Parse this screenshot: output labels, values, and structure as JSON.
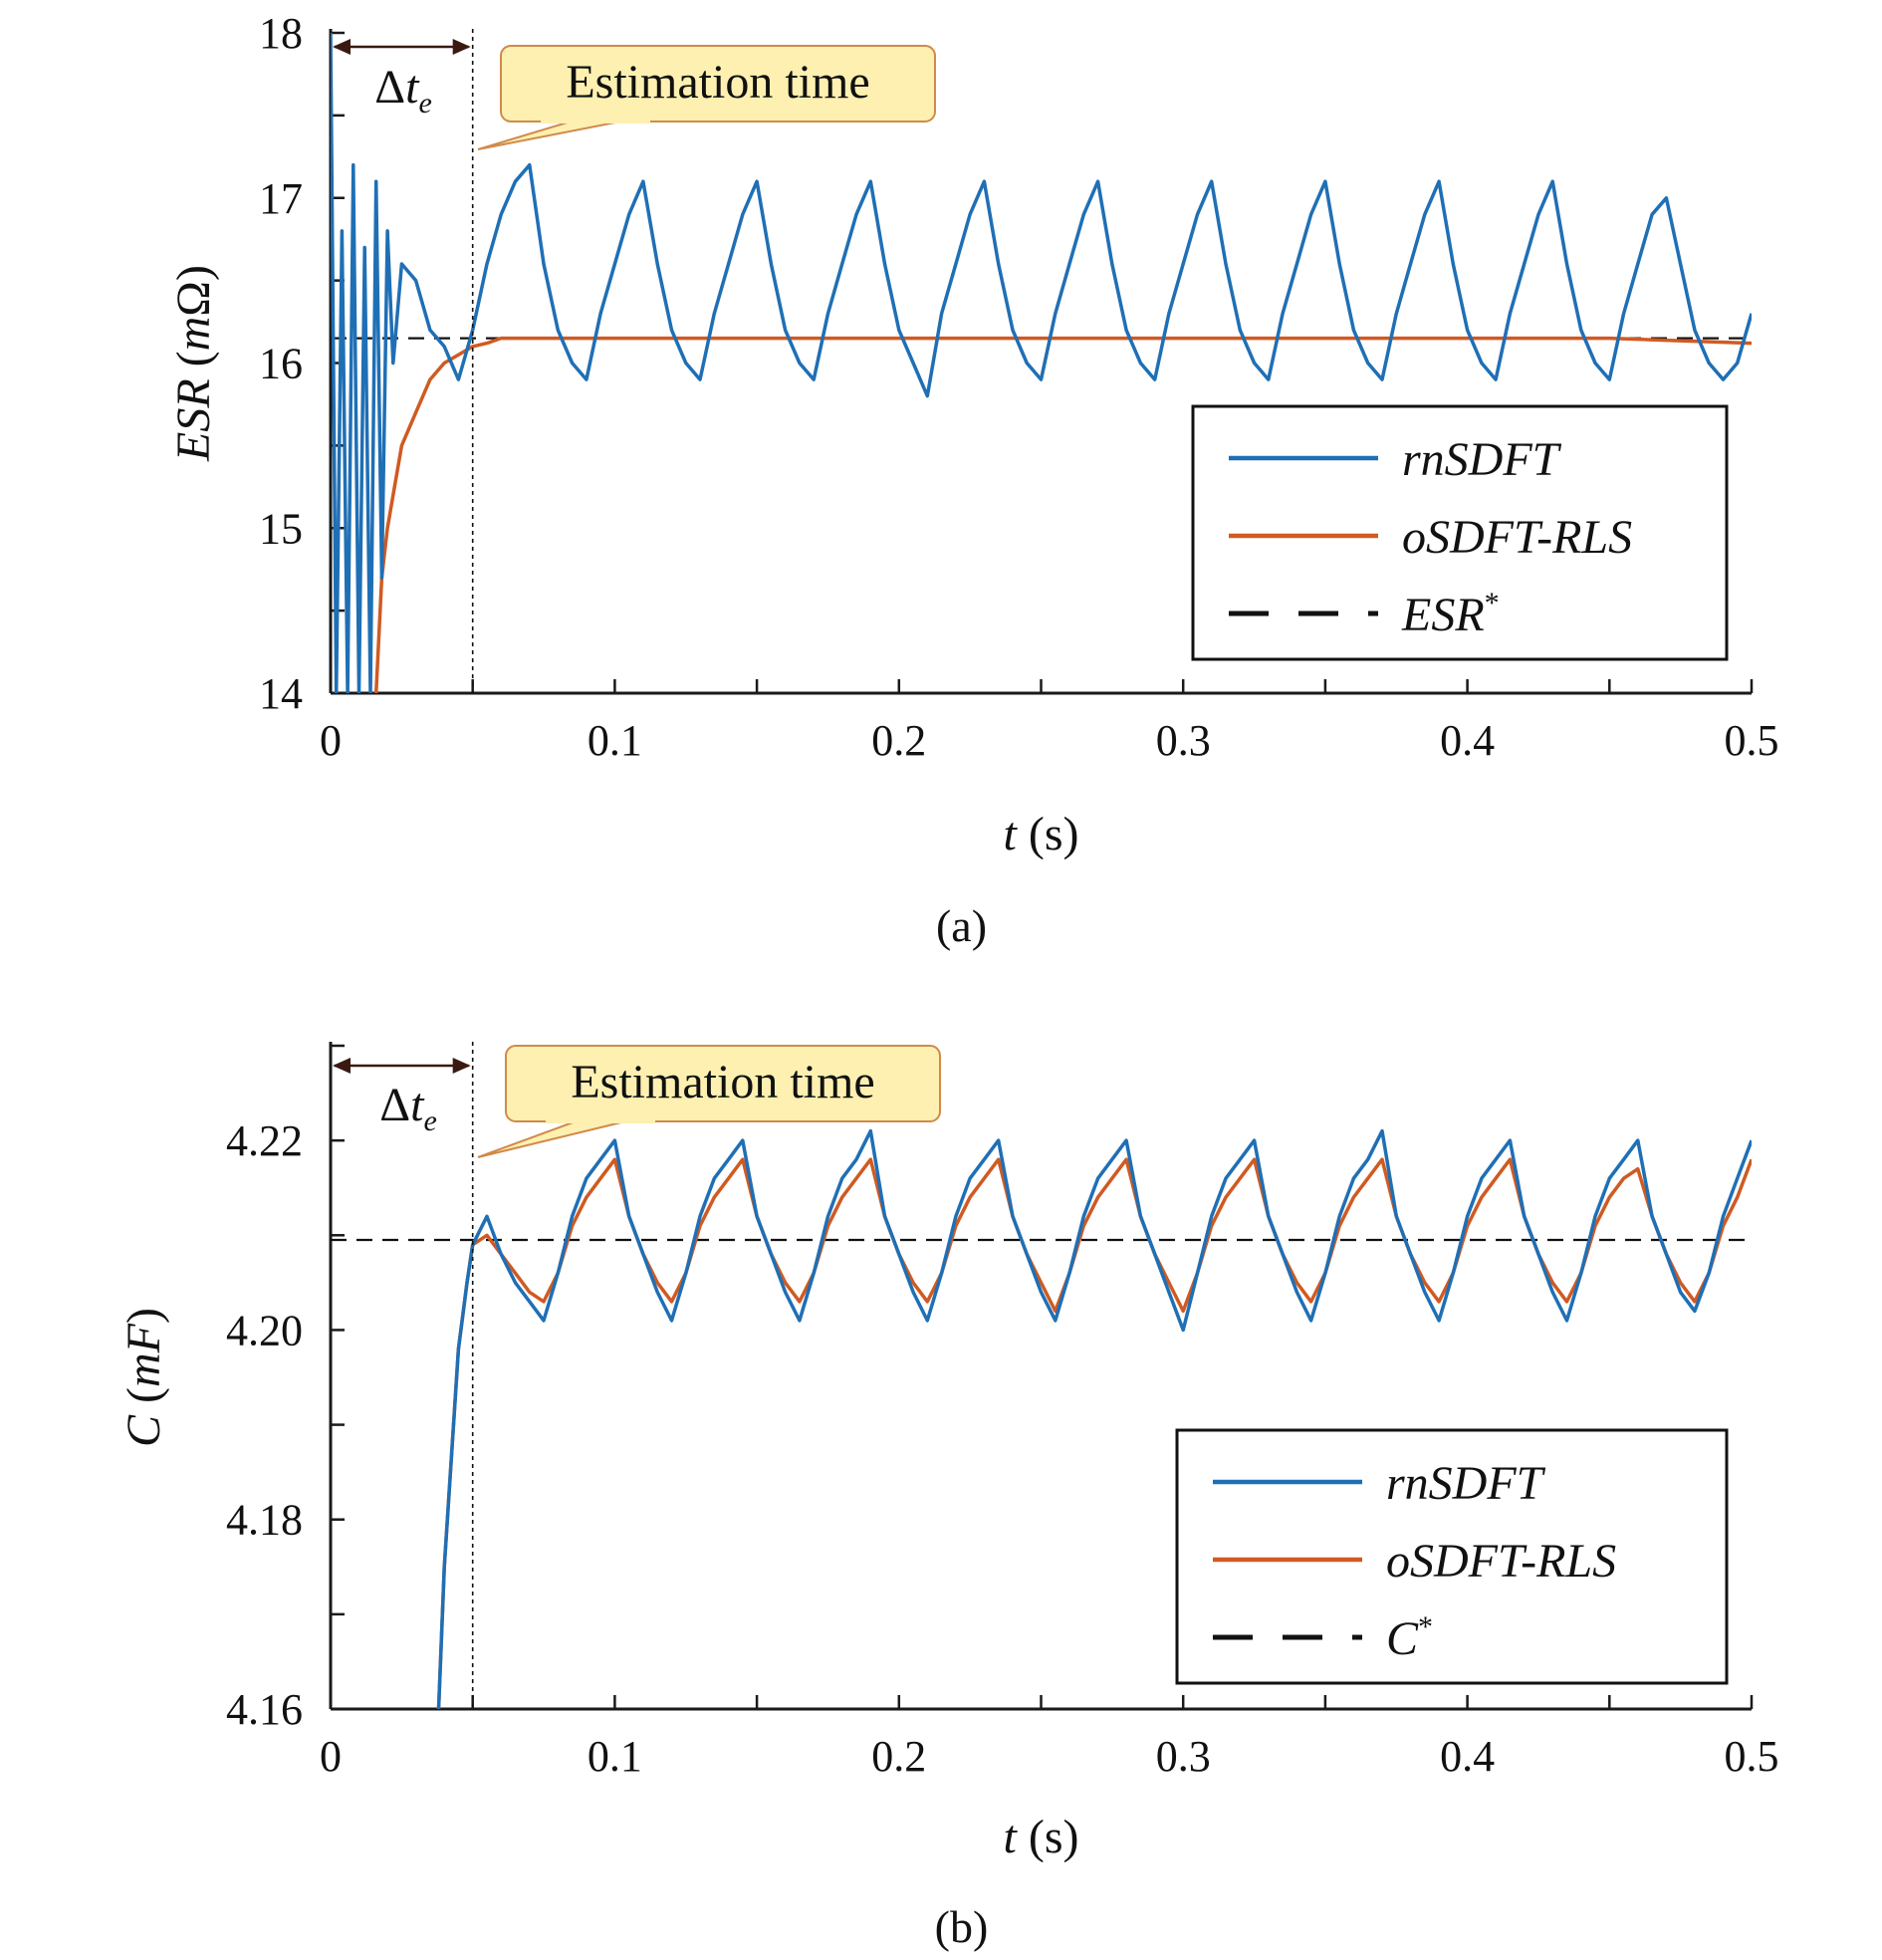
{
  "colors": {
    "rnSDFT": "#1f6fb5",
    "oSDFT_RLS": "#d05a22",
    "reference": "#111111",
    "callout_fill": "#fdf0b0",
    "callout_border": "#d08a4a"
  },
  "chart_data": [
    {
      "type": "line",
      "caption": "(a)",
      "xlabel_var": "t",
      "xlabel_unit": " (s)",
      "ylabel_var": "ESR",
      "ylabel_unit_open": " (",
      "ylabel_unit_var": "m",
      "ylabel_unit_close": "Ω)",
      "xlim": [
        0,
        0.5
      ],
      "ylim": [
        14,
        18
      ],
      "xticks": [
        0,
        0.1,
        0.2,
        0.3,
        0.4,
        0.5
      ],
      "xtick_labels": [
        "0",
        "0.1",
        "0.2",
        "0.3",
        "0.4",
        "0.5"
      ],
      "yticks": [
        14,
        15,
        16,
        17,
        18
      ],
      "ytick_labels": [
        "14",
        "15",
        "16",
        "17",
        "18"
      ],
      "estimation_time_line": 0.05,
      "annotation": "Estimation time",
      "delta_label": "Δt",
      "delta_sub": "e",
      "legend_placement": "lower-right",
      "series": [
        {
          "name": "rnSDFT",
          "x": [
            0.0,
            0.002,
            0.004,
            0.006,
            0.008,
            0.01,
            0.012,
            0.014,
            0.016,
            0.018,
            0.02,
            0.022,
            0.025,
            0.03,
            0.035,
            0.04,
            0.045,
            0.05,
            0.055,
            0.06,
            0.065,
            0.07,
            0.075,
            0.08,
            0.085,
            0.09,
            0.095,
            0.1,
            0.105,
            0.11,
            0.115,
            0.12,
            0.125,
            0.13,
            0.135,
            0.14,
            0.145,
            0.15,
            0.155,
            0.16,
            0.165,
            0.17,
            0.175,
            0.18,
            0.185,
            0.19,
            0.195,
            0.2,
            0.205,
            0.21,
            0.215,
            0.22,
            0.225,
            0.23,
            0.235,
            0.24,
            0.245,
            0.25,
            0.255,
            0.26,
            0.265,
            0.27,
            0.275,
            0.28,
            0.285,
            0.29,
            0.295,
            0.3,
            0.305,
            0.31,
            0.315,
            0.32,
            0.325,
            0.33,
            0.335,
            0.34,
            0.345,
            0.35,
            0.355,
            0.36,
            0.365,
            0.37,
            0.375,
            0.38,
            0.385,
            0.39,
            0.395,
            0.4,
            0.405,
            0.41,
            0.415,
            0.42,
            0.425,
            0.43,
            0.435,
            0.44,
            0.445,
            0.45,
            0.455,
            0.46,
            0.465,
            0.47,
            0.475,
            0.48,
            0.485,
            0.49,
            0.495,
            0.5
          ],
          "y": [
            18.0,
            14.0,
            16.8,
            14.0,
            17.2,
            14.0,
            16.7,
            14.0,
            17.1,
            14.7,
            16.8,
            16.0,
            16.6,
            16.5,
            16.2,
            16.1,
            15.9,
            16.2,
            16.6,
            16.9,
            17.1,
            17.2,
            16.6,
            16.2,
            16.0,
            15.9,
            16.3,
            16.6,
            16.9,
            17.1,
            16.6,
            16.2,
            16.0,
            15.9,
            16.3,
            16.6,
            16.9,
            17.1,
            16.6,
            16.2,
            16.0,
            15.9,
            16.3,
            16.6,
            16.9,
            17.1,
            16.6,
            16.2,
            16.0,
            15.8,
            16.3,
            16.6,
            16.9,
            17.1,
            16.6,
            16.2,
            16.0,
            15.9,
            16.3,
            16.6,
            16.9,
            17.1,
            16.6,
            16.2,
            16.0,
            15.9,
            16.3,
            16.6,
            16.9,
            17.1,
            16.6,
            16.2,
            16.0,
            15.9,
            16.3,
            16.6,
            16.9,
            17.1,
            16.6,
            16.2,
            16.0,
            15.9,
            16.3,
            16.6,
            16.9,
            17.1,
            16.6,
            16.2,
            16.0,
            15.9,
            16.3,
            16.6,
            16.9,
            17.1,
            16.6,
            16.2,
            16.0,
            15.9,
            16.3,
            16.6,
            16.9,
            17.0,
            16.6,
            16.2,
            16.0,
            15.9,
            16.0,
            16.3
          ]
        },
        {
          "name": "oSDFT-RLS",
          "x": [
            0.016,
            0.018,
            0.02,
            0.022,
            0.025,
            0.03,
            0.035,
            0.04,
            0.045,
            0.05,
            0.055,
            0.06,
            0.08,
            0.1,
            0.15,
            0.2,
            0.25,
            0.3,
            0.35,
            0.4,
            0.45,
            0.5
          ],
          "y": [
            14.0,
            14.7,
            15.0,
            15.2,
            15.5,
            15.7,
            15.9,
            16.0,
            16.05,
            16.1,
            16.12,
            16.15,
            16.15,
            16.15,
            16.15,
            16.15,
            16.15,
            16.15,
            16.15,
            16.15,
            16.15,
            16.12
          ]
        },
        {
          "name": "ESR*",
          "x": [
            0,
            0.5
          ],
          "y": [
            16.15,
            16.15
          ]
        }
      ],
      "legend": [
        {
          "text": "rnSDFT",
          "sup": ""
        },
        {
          "text": "oSDFT-RLS",
          "sup": ""
        },
        {
          "text": "ESR",
          "sup": "*"
        }
      ]
    },
    {
      "type": "line",
      "caption": "(b)",
      "xlabel_var": "t",
      "xlabel_unit": " (s)",
      "ylabel_var": "C",
      "ylabel_unit_open": " (",
      "ylabel_unit_var": "mF",
      "ylabel_unit_close": ")",
      "xlim": [
        0,
        0.5
      ],
      "ylim": [
        4.16,
        4.23
      ],
      "xticks": [
        0,
        0.1,
        0.2,
        0.3,
        0.4,
        0.5
      ],
      "xtick_labels": [
        "0",
        "0.1",
        "0.2",
        "0.3",
        "0.4",
        "0.5"
      ],
      "yticks": [
        4.16,
        4.18,
        4.2,
        4.22
      ],
      "ytick_labels": [
        "4.16",
        "4.18",
        "4.20",
        "4.22"
      ],
      "estimation_time_line": 0.05,
      "annotation": "Estimation time",
      "delta_label": "Δt",
      "delta_sub": "e",
      "legend_placement": "lower-right",
      "series": [
        {
          "name": "rnSDFT",
          "x": [
            0.038,
            0.04,
            0.045,
            0.048,
            0.05,
            0.055,
            0.06,
            0.065,
            0.07,
            0.075,
            0.08,
            0.085,
            0.09,
            0.095,
            0.1,
            0.105,
            0.11,
            0.115,
            0.12,
            0.125,
            0.13,
            0.135,
            0.14,
            0.145,
            0.15,
            0.155,
            0.16,
            0.165,
            0.17,
            0.175,
            0.18,
            0.185,
            0.19,
            0.195,
            0.2,
            0.205,
            0.21,
            0.215,
            0.22,
            0.225,
            0.23,
            0.235,
            0.24,
            0.245,
            0.25,
            0.255,
            0.26,
            0.265,
            0.27,
            0.275,
            0.28,
            0.285,
            0.29,
            0.295,
            0.3,
            0.305,
            0.31,
            0.315,
            0.32,
            0.325,
            0.33,
            0.335,
            0.34,
            0.345,
            0.35,
            0.355,
            0.36,
            0.365,
            0.37,
            0.375,
            0.38,
            0.385,
            0.39,
            0.395,
            0.4,
            0.405,
            0.41,
            0.415,
            0.42,
            0.425,
            0.43,
            0.435,
            0.44,
            0.445,
            0.45,
            0.455,
            0.46,
            0.465,
            0.47,
            0.475,
            0.48,
            0.485,
            0.49,
            0.495,
            0.5
          ],
          "y": [
            4.16,
            4.175,
            4.198,
            4.205,
            4.209,
            4.212,
            4.208,
            4.205,
            4.203,
            4.201,
            4.206,
            4.212,
            4.216,
            4.218,
            4.22,
            4.212,
            4.208,
            4.204,
            4.201,
            4.206,
            4.212,
            4.216,
            4.218,
            4.22,
            4.212,
            4.208,
            4.204,
            4.201,
            4.206,
            4.212,
            4.216,
            4.218,
            4.221,
            4.212,
            4.208,
            4.204,
            4.201,
            4.206,
            4.212,
            4.216,
            4.218,
            4.22,
            4.212,
            4.208,
            4.204,
            4.201,
            4.206,
            4.212,
            4.216,
            4.218,
            4.22,
            4.212,
            4.208,
            4.204,
            4.2,
            4.206,
            4.212,
            4.216,
            4.218,
            4.22,
            4.212,
            4.208,
            4.204,
            4.201,
            4.206,
            4.212,
            4.216,
            4.218,
            4.221,
            4.212,
            4.208,
            4.204,
            4.201,
            4.206,
            4.212,
            4.216,
            4.218,
            4.22,
            4.212,
            4.208,
            4.204,
            4.201,
            4.206,
            4.212,
            4.216,
            4.218,
            4.22,
            4.212,
            4.208,
            4.204,
            4.202,
            4.206,
            4.212,
            4.216,
            4.22
          ]
        },
        {
          "name": "oSDFT-RLS",
          "x": [
            0.038,
            0.04,
            0.045,
            0.048,
            0.05,
            0.055,
            0.06,
            0.065,
            0.07,
            0.075,
            0.08,
            0.085,
            0.09,
            0.095,
            0.1,
            0.105,
            0.11,
            0.115,
            0.12,
            0.125,
            0.13,
            0.135,
            0.14,
            0.145,
            0.15,
            0.155,
            0.16,
            0.165,
            0.17,
            0.175,
            0.18,
            0.185,
            0.19,
            0.195,
            0.2,
            0.205,
            0.21,
            0.215,
            0.22,
            0.225,
            0.23,
            0.235,
            0.24,
            0.245,
            0.25,
            0.255,
            0.26,
            0.265,
            0.27,
            0.275,
            0.28,
            0.285,
            0.29,
            0.295,
            0.3,
            0.305,
            0.31,
            0.315,
            0.32,
            0.325,
            0.33,
            0.335,
            0.34,
            0.345,
            0.35,
            0.355,
            0.36,
            0.365,
            0.37,
            0.375,
            0.38,
            0.385,
            0.39,
            0.395,
            0.4,
            0.405,
            0.41,
            0.415,
            0.42,
            0.425,
            0.43,
            0.435,
            0.44,
            0.445,
            0.45,
            0.455,
            0.46,
            0.465,
            0.47,
            0.475,
            0.48,
            0.485,
            0.49,
            0.495,
            0.5
          ],
          "y": [
            4.16,
            4.175,
            4.198,
            4.205,
            4.209,
            4.21,
            4.208,
            4.206,
            4.204,
            4.203,
            4.206,
            4.211,
            4.214,
            4.216,
            4.218,
            4.212,
            4.208,
            4.205,
            4.203,
            4.206,
            4.211,
            4.214,
            4.216,
            4.218,
            4.212,
            4.208,
            4.205,
            4.203,
            4.206,
            4.211,
            4.214,
            4.216,
            4.218,
            4.212,
            4.208,
            4.205,
            4.203,
            4.206,
            4.211,
            4.214,
            4.216,
            4.218,
            4.212,
            4.208,
            4.205,
            4.202,
            4.206,
            4.211,
            4.214,
            4.216,
            4.218,
            4.212,
            4.208,
            4.205,
            4.202,
            4.206,
            4.211,
            4.214,
            4.216,
            4.218,
            4.212,
            4.208,
            4.205,
            4.203,
            4.206,
            4.211,
            4.214,
            4.216,
            4.218,
            4.212,
            4.208,
            4.205,
            4.203,
            4.206,
            4.211,
            4.214,
            4.216,
            4.218,
            4.212,
            4.208,
            4.205,
            4.203,
            4.206,
            4.211,
            4.214,
            4.216,
            4.217,
            4.212,
            4.208,
            4.205,
            4.203,
            4.206,
            4.211,
            4.214,
            4.218
          ]
        },
        {
          "name": "C*",
          "x": [
            0,
            0.5
          ],
          "y": [
            4.2095,
            4.2095
          ]
        }
      ],
      "legend": [
        {
          "text": "rnSDFT",
          "sup": ""
        },
        {
          "text": "oSDFT-RLS",
          "sup": ""
        },
        {
          "text": "C",
          "sup": "*"
        }
      ]
    }
  ]
}
